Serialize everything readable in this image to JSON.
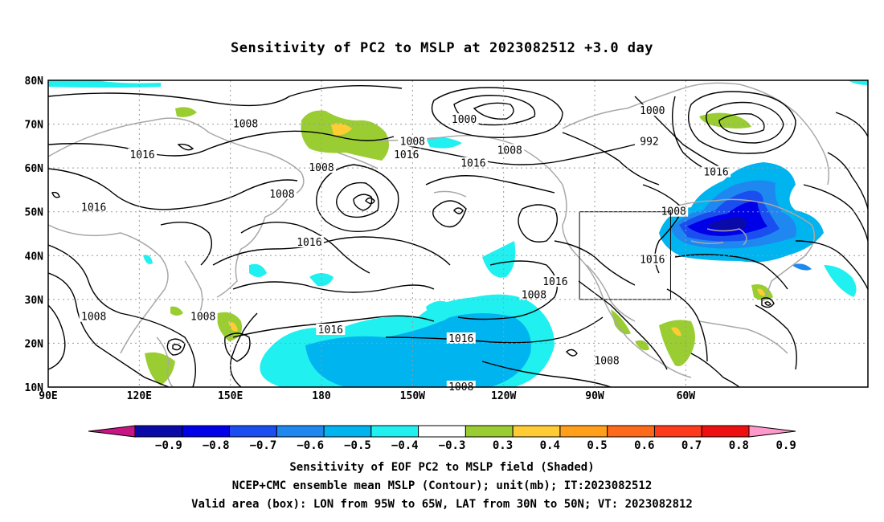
{
  "title": "Sensitivity of PC2 to MSLP at 2023082512 +3.0 day",
  "lat_labels": [
    "80N",
    "70N",
    "60N",
    "50N",
    "40N",
    "30N",
    "20N",
    "10N"
  ],
  "lon_labels": [
    "90E",
    "120E",
    "150E",
    "180",
    "150W",
    "120W",
    "90W",
    "60W"
  ],
  "contour_labels": [
    {
      "text": "1008",
      "lon": 155,
      "lat": 70
    },
    {
      "text": "1016",
      "lon": 121,
      "lat": 63
    },
    {
      "text": "1008",
      "lon": -180,
      "lat": 60
    },
    {
      "text": "1008",
      "lon": 167,
      "lat": 54
    },
    {
      "text": "1016",
      "lon": 105,
      "lat": 51
    },
    {
      "text": "1016",
      "lon": 176,
      "lat": 43
    },
    {
      "text": "1008",
      "lon": 105,
      "lat": 26
    },
    {
      "text": "1008",
      "lon": 141,
      "lat": 26
    },
    {
      "text": "1016",
      "lon": -177,
      "lat": 23
    },
    {
      "text": "1008",
      "lon": -150,
      "lat": 66
    },
    {
      "text": "1016",
      "lon": -152,
      "lat": 63
    },
    {
      "text": "1000",
      "lon": -133,
      "lat": 71
    },
    {
      "text": "1016",
      "lon": -130,
      "lat": 61
    },
    {
      "text": "1008",
      "lon": -118,
      "lat": 64
    },
    {
      "text": "1016",
      "lon": -134,
      "lat": 21
    },
    {
      "text": "1008",
      "lon": -134,
      "lat": 10
    },
    {
      "text": "1016",
      "lon": -103,
      "lat": 34
    },
    {
      "text": "1008",
      "lon": -110,
      "lat": 31
    },
    {
      "text": "1008",
      "lon": -86,
      "lat": 16
    },
    {
      "text": "1016",
      "lon": -71,
      "lat": 39
    },
    {
      "text": "1008",
      "lon": -64,
      "lat": 50
    },
    {
      "text": "1016",
      "lon": -50,
      "lat": 59
    },
    {
      "text": "1000",
      "lon": -71,
      "lat": 73
    },
    {
      "text": "992",
      "lon": -72,
      "lat": 66
    }
  ],
  "colorbar": {
    "labels": [
      "-0.9",
      "-0.8",
      "-0.7",
      "-0.6",
      "-0.5",
      "-0.4",
      "-0.3",
      "0.3",
      "0.4",
      "0.5",
      "0.6",
      "0.7",
      "0.8",
      "0.9"
    ],
    "colors": [
      "#c71585",
      "#0a0aa8",
      "#0000e8",
      "#1a4ef0",
      "#1e88f0",
      "#00b4f0",
      "#20f0f0",
      "#ffffff",
      "#9acd32",
      "#ffcc33",
      "#ff9f1a",
      "#ff6a1a",
      "#ff3a1a",
      "#ee1010",
      "#ff99cc"
    ]
  },
  "valid_box": {
    "lon_from": -95,
    "lon_to": -65,
    "lat_from": 30,
    "lat_to": 50
  },
  "caption": {
    "line1": "Sensitivity of EOF PC2 to MSLP field (Shaded)",
    "line2": "NCEP+CMC ensemble mean MSLP (Contour); unit(mb); IT:2023082512",
    "line3": "Valid area (box): LON from 95W to 65W, LAT from 30N to 50N; VT: 2023082812"
  }
}
